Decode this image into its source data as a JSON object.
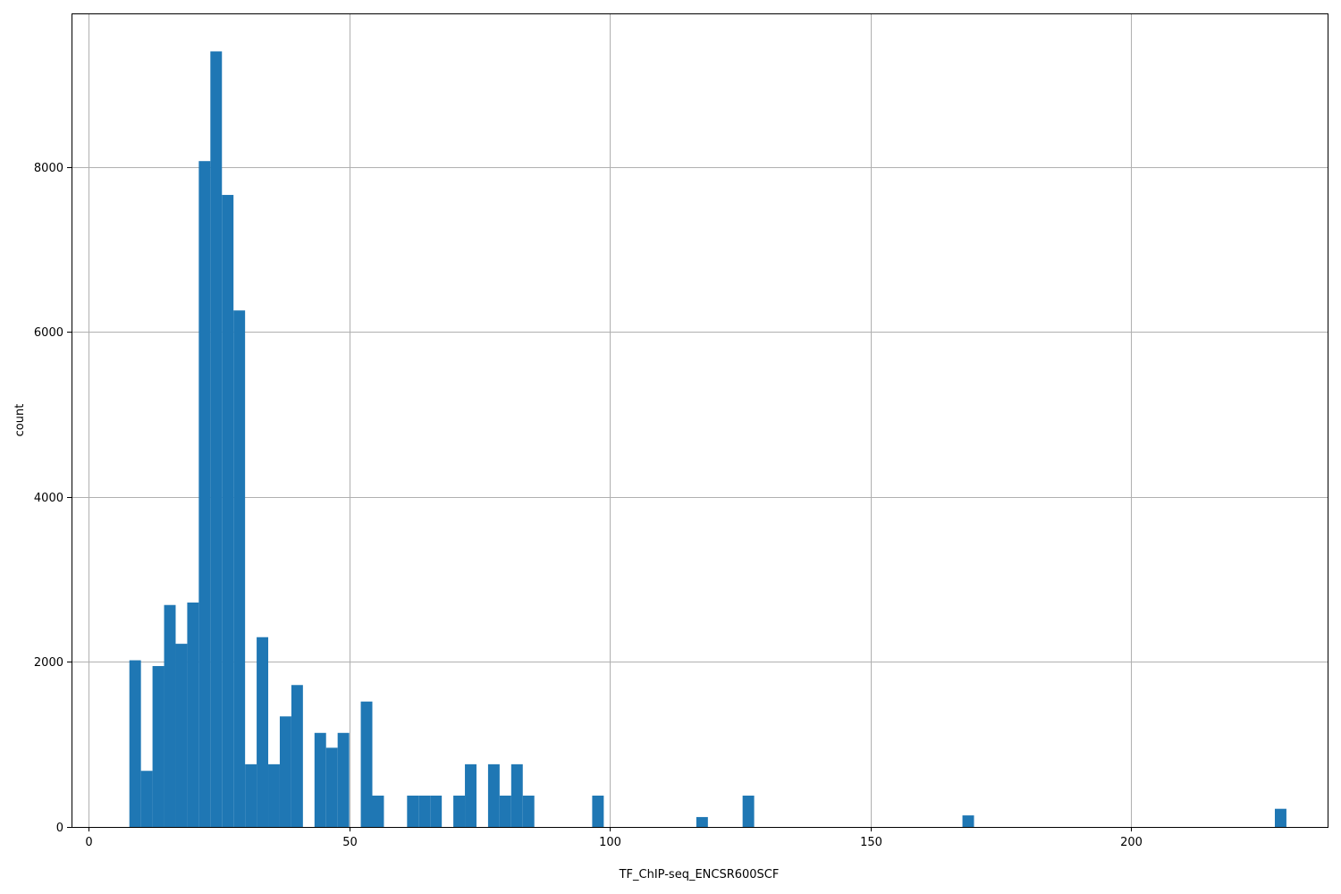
{
  "chart_data": {
    "type": "bar",
    "subtype": "histogram",
    "xlabel": "TF_ChIP-seq_ENCSR600SCF",
    "ylabel": "count",
    "xlim": [
      -3.3,
      237.7
    ],
    "ylim": [
      0,
      9860
    ],
    "xticks": [
      0,
      50,
      100,
      150,
      200
    ],
    "yticks": [
      0,
      2000,
      4000,
      6000,
      8000
    ],
    "grid": true,
    "color": "#1f77b4",
    "bin_width": 2.22,
    "bins": [
      {
        "x0": 7.8,
        "count": 2020
      },
      {
        "x0": 10.02,
        "count": 680
      },
      {
        "x0": 12.24,
        "count": 1950
      },
      {
        "x0": 14.46,
        "count": 2690
      },
      {
        "x0": 16.68,
        "count": 2220
      },
      {
        "x0": 18.9,
        "count": 2720
      },
      {
        "x0": 21.12,
        "count": 8070
      },
      {
        "x0": 23.34,
        "count": 9400
      },
      {
        "x0": 25.56,
        "count": 7660
      },
      {
        "x0": 27.78,
        "count": 6260
      },
      {
        "x0": 30.0,
        "count": 760
      },
      {
        "x0": 32.22,
        "count": 2300
      },
      {
        "x0": 34.44,
        "count": 760
      },
      {
        "x0": 36.66,
        "count": 1340
      },
      {
        "x0": 38.88,
        "count": 1720
      },
      {
        "x0": 43.32,
        "count": 1140
      },
      {
        "x0": 45.54,
        "count": 960
      },
      {
        "x0": 47.76,
        "count": 1140
      },
      {
        "x0": 52.2,
        "count": 1520
      },
      {
        "x0": 54.42,
        "count": 380
      },
      {
        "x0": 61.08,
        "count": 380
      },
      {
        "x0": 63.3,
        "count": 380
      },
      {
        "x0": 65.52,
        "count": 380
      },
      {
        "x0": 69.96,
        "count": 380
      },
      {
        "x0": 72.18,
        "count": 760
      },
      {
        "x0": 76.62,
        "count": 760
      },
      {
        "x0": 78.84,
        "count": 380
      },
      {
        "x0": 81.06,
        "count": 760
      },
      {
        "x0": 83.28,
        "count": 380
      },
      {
        "x0": 96.6,
        "count": 380
      },
      {
        "x0": 116.58,
        "count": 120
      },
      {
        "x0": 125.46,
        "count": 380
      },
      {
        "x0": 167.64,
        "count": 140
      },
      {
        "x0": 227.58,
        "count": 220
      }
    ]
  }
}
